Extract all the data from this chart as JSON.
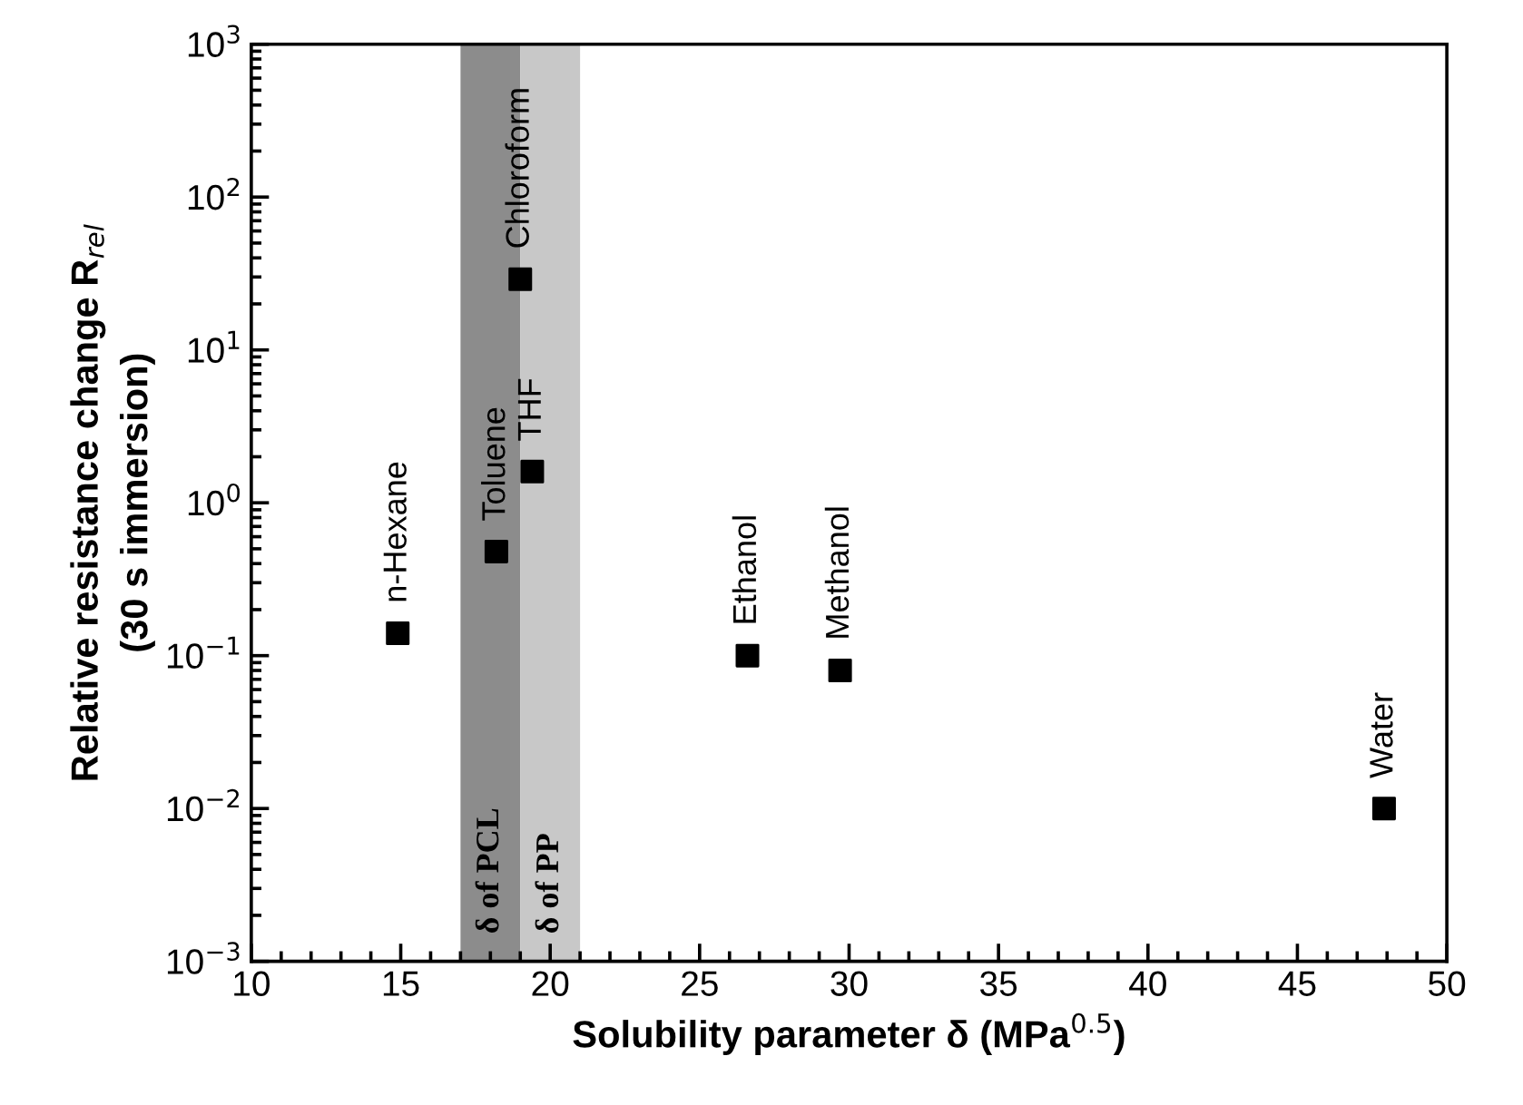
{
  "chart_data": {
    "type": "scatter",
    "xlabel": "Solubility parameter δ (MPa$^{0.5}$)",
    "ylabel": "Relative resistance change R$_{rel}$\n(30 s immersion)",
    "x": [
      14.9,
      18.2,
      19.4,
      19.0,
      26.6,
      29.7,
      47.9
    ],
    "series": [
      {
        "color": "#000000",
        "values": [
          0.14,
          0.48,
          1.6,
          29,
          0.1,
          0.08,
          0.01
        ]
      }
    ],
    "marker": "square",
    "log": "y",
    "xlim": [
      10,
      50
    ],
    "xticks": [
      10,
      15,
      20,
      25,
      30,
      35,
      40,
      45,
      50
    ],
    "ylim": [
      0.001,
      1000
    ],
    "yticks": [
      {
        "value": 0.001,
        "label": "10$^{−3}$"
      },
      {
        "value": 0.01,
        "label": "10$^{−2}$"
      },
      {
        "value": 0.1,
        "label": "10$^{−1}$"
      },
      {
        "value": 1,
        "label": "10$^{0}$"
      },
      {
        "value": 10,
        "label": "10$^{1}$"
      },
      {
        "value": 100,
        "label": "10$^{2}$"
      },
      {
        "value": 1000,
        "label": "10$^{3}$"
      }
    ],
    "bands": [
      {
        "axis": "x",
        "from": 17,
        "to": 19,
        "label": "δ of PCL",
        "color": "#8c8c8c"
      },
      {
        "axis": "x",
        "from": 19,
        "to": 21,
        "label": "δ of PP",
        "color": "#c8c8c8"
      }
    ],
    "annotations": [
      {
        "text": "n-Hexane",
        "x": 14.9,
        "y": 0.14
      },
      {
        "text": "Toluene",
        "x": 18.2,
        "y": 0.48
      },
      {
        "text": "THF",
        "x": 19.4,
        "y": 1.6
      },
      {
        "text": "Chloroform",
        "x": 19.0,
        "y": 29
      },
      {
        "text": "Ethanol",
        "x": 26.6,
        "y": 0.1
      },
      {
        "text": "Methanol",
        "x": 29.7,
        "y": 0.08
      },
      {
        "text": "Water",
        "x": 47.9,
        "y": 0.01
      }
    ],
    "grid": false,
    "legend": false
  }
}
